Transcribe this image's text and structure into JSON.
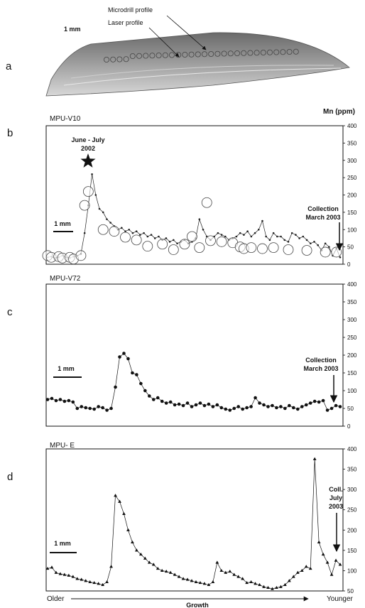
{
  "image_panel": {
    "panel": "a",
    "scale_label": "1 mm",
    "labels": [
      "Microdrill profile",
      "Laser profile"
    ]
  },
  "x_axis": {
    "left": "Older",
    "right": "Younger",
    "label": "Growth"
  },
  "chart_data": [
    {
      "type": "line",
      "panel": "b",
      "title": "MPU-V10",
      "y_label": "Mn (ppm)",
      "ylim": [
        0,
        400
      ],
      "yticks": [
        0,
        50,
        100,
        150,
        200,
        250,
        300,
        350,
        400
      ],
      "annotations": [
        [
          "June - July",
          "2002"
        ],
        [
          "Collection",
          "March 2003"
        ],
        [
          "1 mm"
        ]
      ],
      "series": [
        {
          "marker": "dot",
          "color": "#222222",
          "values": [
            20,
            22,
            18,
            20,
            25,
            20,
            18,
            22,
            24,
            30,
            90,
            170,
            260,
            200,
            160,
            150,
            130,
            120,
            110,
            100,
            105,
            95,
            100,
            90,
            95,
            85,
            90,
            80,
            85,
            75,
            80,
            70,
            75,
            65,
            70,
            60,
            65,
            70,
            60,
            65,
            75,
            130,
            100,
            80,
            70,
            80,
            90,
            85,
            80,
            70,
            75,
            80,
            90,
            85,
            95,
            80,
            90,
            100,
            125,
            80,
            70,
            90,
            80,
            80,
            70,
            65,
            90,
            85,
            75,
            80,
            70,
            60,
            65,
            55,
            40,
            60,
            50,
            25,
            45,
            20
          ]
        },
        {
          "marker": "circle",
          "color": "#444444",
          "values": [
            25,
            20,
            null,
            22,
            18,
            null,
            20,
            15,
            null,
            25,
            170,
            210,
            null,
            null,
            null,
            100,
            null,
            null,
            95,
            null,
            null,
            78,
            null,
            null,
            70,
            null,
            null,
            52,
            null,
            null,
            null,
            58,
            null,
            null,
            42,
            null,
            null,
            58,
            null,
            80,
            null,
            48,
            null,
            178,
            68,
            null,
            null,
            65,
            null,
            null,
            62,
            null,
            50,
            45,
            null,
            48,
            null,
            null,
            45,
            null,
            null,
            48,
            null,
            null,
            null,
            42,
            null,
            null,
            null,
            null,
            40,
            null,
            null,
            null,
            null,
            35,
            null,
            null,
            35,
            null
          ]
        }
      ]
    },
    {
      "type": "line",
      "panel": "c",
      "title": "MPU-V72",
      "ylim": [
        0,
        400
      ],
      "yticks": [
        0,
        50,
        100,
        150,
        200,
        250,
        300,
        350,
        400
      ],
      "annotations": [
        [
          "Collection",
          "March 2003"
        ],
        [
          "1 mm"
        ]
      ],
      "series": [
        {
          "marker": "bigdot",
          "color": "#111111",
          "values": [
            75,
            78,
            72,
            75,
            70,
            72,
            68,
            50,
            55,
            52,
            50,
            48,
            55,
            52,
            45,
            50,
            110,
            195,
            205,
            190,
            150,
            145,
            120,
            100,
            85,
            75,
            80,
            70,
            65,
            68,
            60,
            62,
            58,
            65,
            55,
            60,
            65,
            58,
            62,
            55,
            60,
            52,
            48,
            45,
            50,
            55,
            48,
            52,
            55,
            80,
            65,
            60,
            55,
            58,
            52,
            55,
            50,
            58,
            52,
            48,
            55,
            60,
            65,
            70,
            68,
            72,
            45,
            50,
            58,
            55
          ]
        }
      ]
    },
    {
      "type": "line",
      "panel": "d",
      "title": "MPU- E",
      "ylim": [
        50,
        400
      ],
      "yticks": [
        50,
        100,
        150,
        200,
        250,
        300,
        350,
        400
      ],
      "annotations": [
        [
          "Coll.",
          "July",
          "2003"
        ],
        [
          "1 mm"
        ]
      ],
      "series": [
        {
          "marker": "triangle",
          "color": "#111111",
          "values": [
            105,
            108,
            95,
            92,
            90,
            88,
            85,
            80,
            78,
            75,
            72,
            70,
            68,
            65,
            72,
            110,
            285,
            270,
            240,
            200,
            170,
            150,
            140,
            130,
            120,
            115,
            105,
            100,
            98,
            95,
            90,
            85,
            80,
            78,
            75,
            72,
            70,
            68,
            65,
            72,
            120,
            100,
            95,
            98,
            90,
            85,
            80,
            70,
            72,
            68,
            65,
            60,
            58,
            55,
            58,
            60,
            65,
            75,
            85,
            95,
            100,
            110,
            105,
            375,
            170,
            140,
            120,
            90,
            125,
            115
          ]
        }
      ]
    }
  ]
}
